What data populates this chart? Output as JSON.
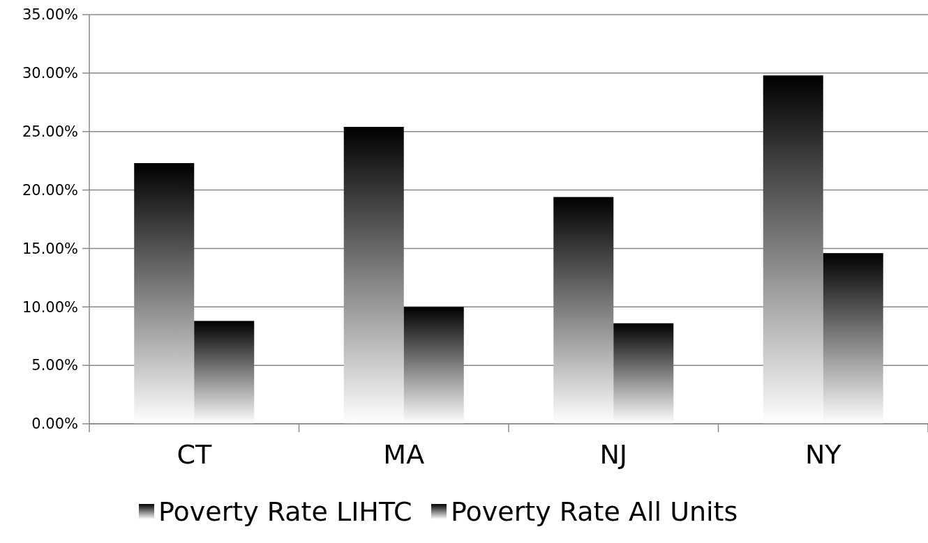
{
  "chart_data": {
    "type": "bar",
    "categories": [
      "CT",
      "MA",
      "NJ",
      "NY"
    ],
    "series": [
      {
        "name": "Poverty Rate LIHTC",
        "color": "#000000",
        "values": [
          22.3,
          25.4,
          19.4,
          29.8
        ]
      },
      {
        "name": "Poverty Rate All Units",
        "color": "#000000",
        "values": [
          8.8,
          10.0,
          8.6,
          14.6
        ]
      }
    ],
    "ylim": [
      0,
      35
    ],
    "yticks": [
      {
        "value": 0,
        "label": "0.00%"
      },
      {
        "value": 5,
        "label": "5.00%"
      },
      {
        "value": 10,
        "label": "10.00%"
      },
      {
        "value": 15,
        "label": "15.00%"
      },
      {
        "value": 20,
        "label": "20.00%"
      },
      {
        "value": 25,
        "label": "25.00%"
      },
      {
        "value": 30,
        "label": "30.00%"
      },
      {
        "value": 35,
        "label": "35.00%"
      }
    ],
    "grid": "y",
    "legend": "bottom"
  }
}
